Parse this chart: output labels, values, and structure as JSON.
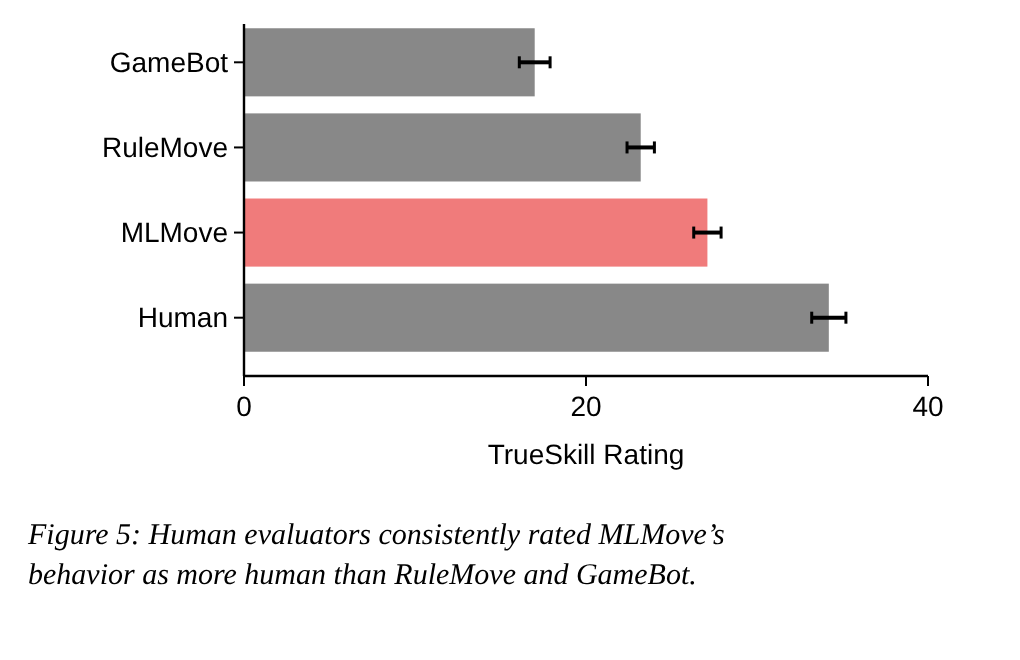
{
  "chart_data": {
    "type": "bar",
    "orientation": "horizontal",
    "categories": [
      "GameBot",
      "RuleMove",
      "MLMove",
      "Human"
    ],
    "values": [
      17.0,
      23.2,
      27.1,
      34.2
    ],
    "errors": [
      0.9,
      0.8,
      0.8,
      1.0
    ],
    "colors": [
      "#888888",
      "#888888",
      "#f07b7b",
      "#888888"
    ],
    "xlim": [
      0,
      40
    ],
    "xticks": [
      0,
      20,
      40
    ],
    "xlabel": "TrueSkill Rating",
    "annotations": [
      "Figure 5: Human evaluators consistently rated MLMove’s behavior as more human than RuleMove and GameBot."
    ]
  }
}
